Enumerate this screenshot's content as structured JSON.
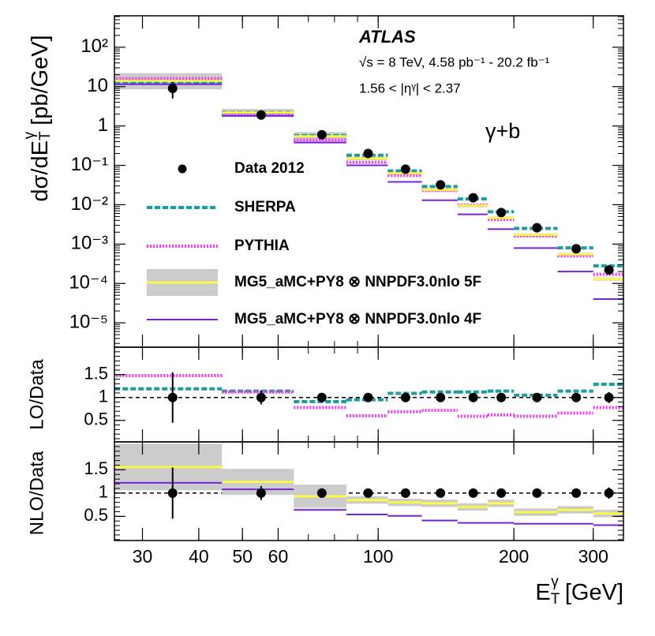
{
  "chart_data": [
    {
      "type": "step",
      "log_y": true,
      "y_label": {
        "main": "dσ/dE",
        "sub": "T",
        "sup": "γ",
        "unit": " [pb/GeV]"
      },
      "annotations": {
        "experiment": "ATLAS",
        "energy": "√s = 8 TeV, 4.58 pb⁻¹ - 20.2 fb⁻¹",
        "region": "1.56 < |ηᵞ| < 2.37",
        "process": "γ+b"
      },
      "ylim": [
        2.4e-06,
        630
      ],
      "yticks": [
        {
          "value": 100,
          "label": "10²"
        },
        10,
        1,
        {
          "value": 0.1,
          "label": "10⁻¹"
        },
        {
          "value": 0.01,
          "label": "10⁻²"
        },
        {
          "value": 0.001,
          "label": "10⁻³"
        },
        {
          "value": 0.0001,
          "label": "10⁻⁴"
        },
        {
          "value": 1e-05,
          "label": "10⁻⁵"
        }
      ],
      "bins": [
        25,
        45,
        65,
        85,
        105,
        125,
        150,
        175,
        200,
        250,
        300,
        350
      ],
      "x": [
        35,
        55,
        75,
        95,
        115,
        137.5,
        162.5,
        187.5,
        225,
        275,
        325
      ],
      "series": [
        {
          "name": "Data 2012",
          "style": "points",
          "color": "#000000",
          "values": [
            9,
            1.9,
            0.6,
            0.2,
            0.08,
            0.032,
            0.015,
            0.0063,
            0.0026,
            0.00076,
            0.00022
          ],
          "errors": [
            4,
            0.3,
            0.05,
            0.015,
            0.006,
            0.002,
            0.001,
            0.0004,
            0.0002,
            8e-05,
            4e-05
          ]
        },
        {
          "name": "SHERPA",
          "style": "dashed",
          "color": "#1a9e9e",
          "values": [
            13,
            2.2,
            0.57,
            0.18,
            0.072,
            0.029,
            0.014,
            0.0066,
            0.0025,
            0.0008,
            0.00028
          ]
        },
        {
          "name": "PYTHIA",
          "style": "dotted",
          "color": "#ff33ff",
          "values": [
            16,
            2.0,
            0.44,
            0.12,
            0.055,
            0.023,
            0.0098,
            0.0042,
            0.0016,
            0.0005,
            0.00017
          ]
        },
        {
          "name": "MG5_aMC+PY8 ⊗ NNPDF3.0nlo 5F",
          "style": "band",
          "color": "#ffff33",
          "band_color": "#cccccc",
          "values": [
            14,
            2.2,
            0.55,
            0.15,
            0.063,
            0.024,
            0.0095,
            0.0046,
            0.0017,
            0.00055,
            0.00013
          ],
          "band_low": [
            8.5,
            1.7,
            0.4,
            0.135,
            0.057,
            0.022,
            0.0086,
            0.0042,
            0.00154,
            0.0005,
            0.000118
          ],
          "band_high": [
            22,
            2.7,
            0.7,
            0.165,
            0.069,
            0.026,
            0.0104,
            0.005,
            0.00186,
            0.0006,
            0.000142
          ]
        },
        {
          "name": "MG5_aMC+PY8 ⊗ NNPDF3.0nlo 4F",
          "style": "solid",
          "color": "#7722dd",
          "values": [
            11.5,
            1.8,
            0.38,
            0.1,
            0.038,
            0.013,
            0.0057,
            0.0024,
            0.00079,
            0.0002,
            4e-05
          ]
        }
      ]
    },
    {
      "type": "step",
      "log_y": false,
      "y_label": "LO/Data",
      "ylim": [
        0.03,
        2.1
      ],
      "yticks": [
        0.5,
        1,
        1.5
      ],
      "reference": 1,
      "bins": [
        25,
        45,
        65,
        85,
        105,
        125,
        150,
        175,
        200,
        250,
        300,
        350
      ],
      "x": [
        35,
        55,
        75,
        95,
        115,
        137.5,
        162.5,
        187.5,
        225,
        275,
        325
      ],
      "series": [
        {
          "style": "points",
          "color": "#000000",
          "values": [
            1,
            1,
            1,
            1,
            1,
            1,
            1,
            1,
            1,
            1,
            1
          ],
          "errors": [
            0.55,
            0.15,
            0.1,
            0.08,
            0.08,
            0.08,
            0.08,
            0.08,
            0.08,
            0.1,
            0.12
          ]
        },
        {
          "style": "dashed",
          "color": "#1a9e9e",
          "values": [
            1.19,
            1.14,
            0.91,
            0.95,
            1.09,
            1.12,
            1.12,
            1.14,
            1.05,
            1.14,
            1.29
          ]
        },
        {
          "style": "dotted",
          "color": "#ff33ff",
          "values": [
            1.48,
            1.12,
            0.78,
            0.6,
            0.69,
            0.72,
            0.59,
            0.62,
            0.59,
            0.66,
            0.78
          ]
        }
      ]
    },
    {
      "type": "step",
      "log_y": false,
      "y_label": "NLO/Data",
      "ylim": [
        -0.02,
        2.1
      ],
      "yticks": [
        0.5,
        1,
        1.5
      ],
      "reference": 1,
      "log_x": true,
      "xlim": [
        26,
        350
      ],
      "xticks": [
        30,
        40,
        50,
        60,
        100,
        200,
        300
      ],
      "x_label": {
        "main": "E",
        "sub": "T",
        "sup": "γ",
        "unit": " [GeV]"
      },
      "bins": [
        25,
        45,
        65,
        85,
        105,
        125,
        150,
        175,
        200,
        250,
        300,
        350
      ],
      "x": [
        35,
        55,
        75,
        95,
        115,
        137.5,
        162.5,
        187.5,
        225,
        275,
        325
      ],
      "series": [
        {
          "style": "points",
          "color": "#000000",
          "values": [
            1,
            1,
            1,
            1,
            1,
            1,
            1,
            1,
            1,
            1,
            1
          ],
          "errors": [
            0.55,
            0.15,
            0.1,
            0.08,
            0.08,
            0.08,
            0.08,
            0.08,
            0.08,
            0.1,
            0.12
          ]
        },
        {
          "style": "band",
          "color": "#ffff33",
          "band_color": "#cccccc",
          "values": [
            1.56,
            1.24,
            0.93,
            0.85,
            0.8,
            0.78,
            0.7,
            0.78,
            0.59,
            0.64,
            0.56
          ],
          "errors": [
            0.5,
            0.28,
            0.25,
            0.08,
            0.08,
            0.08,
            0.08,
            0.08,
            0.08,
            0.08,
            0.08
          ]
        },
        {
          "style": "solid",
          "color": "#7722dd",
          "values": [
            1.22,
            1.08,
            0.64,
            0.54,
            0.51,
            0.41,
            0.36,
            0.36,
            0.34,
            0.34,
            0.31
          ]
        }
      ]
    }
  ]
}
